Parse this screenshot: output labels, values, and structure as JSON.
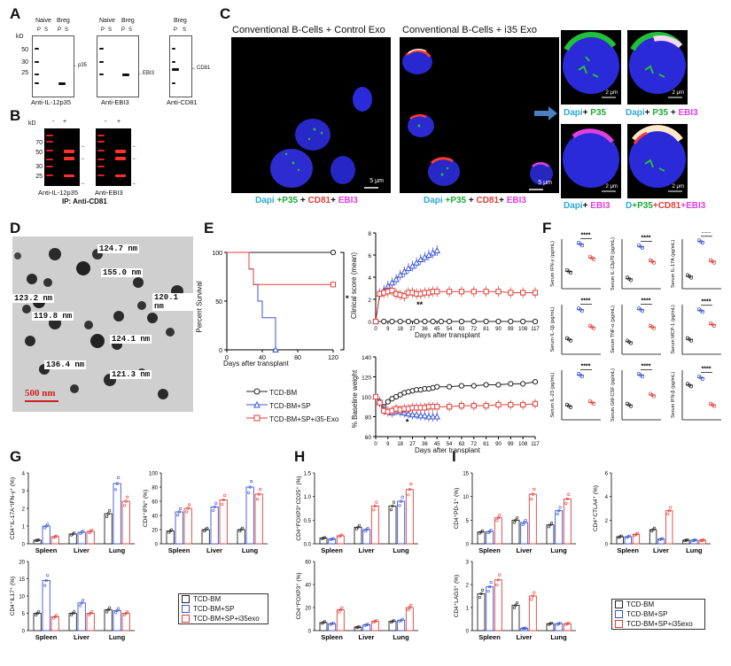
{
  "panels": {
    "A": "A",
    "B": "B",
    "C": "C",
    "D": "D",
    "E": "E",
    "F": "F",
    "G": "G",
    "H": "H",
    "I": "I"
  },
  "A": {
    "blot1": {
      "header1": "Naive",
      "header2": "Breg",
      "lanes": [
        "P",
        "S",
        "P",
        "S"
      ],
      "ladder": [
        "50",
        "30",
        "25"
      ],
      "ladder_unit": "kD",
      "band": "p35",
      "caption": "Anti-IL-12p35"
    },
    "blot2": {
      "header1": "Naive",
      "header2": "Breg",
      "lanes": [
        "P",
        "S",
        "P",
        "S"
      ],
      "band": "EBI3",
      "caption": "Anti-EBI3"
    },
    "blot3": {
      "header": "Breg",
      "lanes": [
        "P",
        "S"
      ],
      "band": "CD81",
      "caption": "Anti-CD81"
    }
  },
  "B": {
    "unit": "kD",
    "lanes": [
      "-",
      "+"
    ],
    "ladder": [
      "70",
      "50",
      "30",
      "25"
    ],
    "caption1": "Anti-IL-12p35",
    "caption2": "Anti-EBI3",
    "ip": "IP: Anti-CD81"
  },
  "C": {
    "title_left": "Conventional B-Cells + Control Exo",
    "title_right": "Conventional B-Cells + i35 Exo",
    "scale": "5 μm",
    "scale_zoom": "2 μm",
    "legend_main": [
      "Dapi",
      "+P35",
      "+",
      "CD81",
      "+",
      "EBI3"
    ],
    "zoom_labels": [
      [
        "Dapi",
        "+",
        "P35"
      ],
      [
        "Dapi",
        "+",
        "P35",
        "+",
        "EBI3"
      ],
      [
        "Dapi",
        "+",
        "EBI3"
      ],
      [
        "D",
        "+P35",
        "+CD81",
        "+EBI3"
      ]
    ]
  },
  "D": {
    "sizes": [
      "124.7 nm",
      "155.0 nm",
      "123.2 nm",
      "120.1 nm",
      "119.8 nm",
      "124.1 nm",
      "136.4 nm",
      "121.3 nm"
    ],
    "scale": "500 nm"
  },
  "E": {
    "survival": {
      "ylabel": "Percent Survival",
      "xlabel": "Days after transplant",
      "yticks": [
        "0",
        "50",
        "100"
      ],
      "xticks": [
        "0",
        "40",
        "80",
        "120"
      ],
      "sig": "**"
    },
    "clinical": {
      "ylabel": "Clinical score (mean)",
      "xlabel": "Days after transplant",
      "yticks": [
        "0",
        "2",
        "4",
        "6",
        "8"
      ],
      "xticks": [
        "0",
        "9",
        "18",
        "27",
        "36",
        "45",
        "54",
        "63",
        "72",
        "81",
        "90",
        "99",
        "108",
        "117"
      ],
      "sig": "**"
    },
    "weight": {
      "ylabel": "% Baseline weight",
      "xlabel": "Days after transplant",
      "yticks": [
        "60",
        "80",
        "100",
        "120",
        "140"
      ],
      "xticks": [
        "0",
        "9",
        "18",
        "27",
        "36",
        "45",
        "54",
        "63",
        "72",
        "81",
        "90",
        "99",
        "108",
        "117"
      ],
      "sig": "*"
    },
    "legend": [
      "TCD-BM",
      "TCD-BM+SP",
      "TCD-BM+SP+i35-Exo"
    ]
  },
  "F": {
    "plots": [
      {
        "ylabel": "Serum IFN-γ (pg/mL)",
        "sig": "****"
      },
      {
        "ylabel": "Serum IL-12p70 (pg/mL)",
        "sig": "****"
      },
      {
        "ylabel": "Serum IL-17A (pg/mL)",
        "sig": "****"
      },
      {
        "ylabel": "Serum IL-1β (pg/mL)",
        "sig": "****"
      },
      {
        "ylabel": "Serum TNF-α (pg/mL)",
        "sig": "****"
      },
      {
        "ylabel": "Serum MCP-1 (pg/mL)",
        "sig": "****"
      },
      {
        "ylabel": "Serum IL-23 (pg/mL)",
        "sig": "****"
      },
      {
        "ylabel": "Serum GM-CSF (pg/mL)",
        "sig": "****"
      },
      {
        "ylabel": "Serum IFN-β (pg/mL)",
        "sig": "****"
      }
    ]
  },
  "G": {
    "plots": [
      {
        "ylabel": "CD4⁺IL-17A⁺IFN-γ⁺ (%)",
        "yticks": [
          "0",
          "1",
          "2",
          "3",
          "4"
        ]
      },
      {
        "ylabel": "CD4⁺IFN⁺ (%)",
        "yticks": [
          "0",
          "20",
          "40",
          "60",
          "80",
          "100"
        ]
      },
      {
        "ylabel": "CD4⁺IL17⁺ (%)",
        "yticks": [
          "0",
          "5",
          "10",
          "15",
          "20"
        ]
      }
    ],
    "tissues": [
      "Spleen",
      "Liver",
      "Lung"
    ]
  },
  "H": {
    "plots": [
      {
        "ylabel": "CD4⁺FOXP3⁺CD25⁺ (%)",
        "yticks": [
          "0.0",
          "0.5",
          "1.0",
          "1.5"
        ]
      },
      {
        "ylabel": "CD4⁺FOXP3⁺ (%)",
        "yticks": [
          "0",
          "20",
          "40",
          "60"
        ]
      }
    ],
    "tissues": [
      "Spleen",
      "Liver",
      "Lung"
    ]
  },
  "I": {
    "plots": [
      {
        "ylabel": "CD4⁺PD-1⁺ (%)",
        "yticks": [
          "0",
          "5",
          "10",
          "15"
        ]
      },
      {
        "ylabel": "CD4⁺CTLA4⁺ (%)",
        "yticks": [
          "0",
          "2",
          "4",
          "6"
        ]
      },
      {
        "ylabel": "CD4⁺LAG3⁺ (%)",
        "yticks": [
          "0",
          "1",
          "2",
          "3"
        ]
      }
    ],
    "tissues": [
      "Spleen",
      "Liver",
      "Lung"
    ]
  },
  "legend_groups": [
    "TCD-BM",
    "TCD-BM+SP",
    "TCD-BM+SP+i35exo"
  ],
  "colors": {
    "black": "#222222",
    "blue": "#3a55d6",
    "red": "#e0403a",
    "green": "#22c03a",
    "magenta": "#e040e0",
    "cyan": "#30a8d8",
    "nucleus": "#2a2ad8"
  },
  "chart_data": [
    {
      "type": "line",
      "title": "",
      "xlabel": "Days after transplant",
      "ylabel": "Percent Survival",
      "xlim": [
        0,
        120
      ],
      "ylim": [
        0,
        100
      ],
      "series": [
        {
          "name": "TCD-BM",
          "x": [
            0,
            120
          ],
          "values": [
            100,
            100
          ]
        },
        {
          "name": "TCD-BM+SP",
          "x": [
            0,
            25,
            30,
            35,
            40,
            50,
            55
          ],
          "values": [
            100,
            83,
            67,
            50,
            33,
            33,
            0
          ]
        },
        {
          "name": "TCD-BM+SP+i35-Exo",
          "x": [
            0,
            25,
            30,
            120
          ],
          "values": [
            100,
            83,
            67,
            67
          ]
        }
      ]
    },
    {
      "type": "line",
      "title": "",
      "xlabel": "Days after transplant",
      "ylabel": "Clinical score (mean)",
      "xlim": [
        0,
        117
      ],
      "ylim": [
        0,
        8
      ],
      "series": [
        {
          "name": "TCD-BM",
          "x": [
            0,
            6,
            12,
            18,
            24,
            30,
            36,
            42,
            48,
            54,
            63,
            72,
            81,
            90,
            99,
            108,
            117
          ],
          "values": [
            0,
            0,
            0,
            0,
            0,
            0,
            0,
            0,
            0,
            0,
            0,
            0,
            0,
            0,
            0,
            0,
            0
          ]
        },
        {
          "name": "TCD-BM+SP",
          "x": [
            0,
            3,
            6,
            9,
            12,
            15,
            18,
            21,
            24,
            27,
            30,
            33,
            36,
            39,
            42,
            45
          ],
          "values": [
            0,
            2.5,
            2.8,
            3.2,
            3.5,
            3.8,
            4.2,
            4.5,
            4.8,
            5,
            5.3,
            5.6,
            5.8,
            6,
            6.2,
            6.4
          ]
        },
        {
          "name": "TCD-BM+SP+i35-Exo",
          "x": [
            0,
            3,
            6,
            9,
            12,
            15,
            18,
            21,
            24,
            27,
            30,
            33,
            36,
            39,
            42,
            45,
            54,
            63,
            72,
            81,
            90,
            99,
            108,
            117
          ],
          "values": [
            0,
            2.5,
            2.6,
            2.7,
            2.8,
            2.5,
            2.4,
            2.3,
            2.6,
            2.6,
            2.5,
            2.5,
            2.6,
            2.6,
            2.7,
            2.7,
            2.7,
            2.7,
            2.7,
            2.7,
            2.7,
            2.6,
            2.6,
            2.6
          ]
        }
      ]
    },
    {
      "type": "line",
      "title": "",
      "xlabel": "Days after transplant",
      "ylabel": "% Baseline weight",
      "xlim": [
        0,
        117
      ],
      "ylim": [
        60,
        140
      ],
      "series": [
        {
          "name": "TCD-BM",
          "x": [
            0,
            3,
            6,
            9,
            12,
            15,
            18,
            21,
            24,
            27,
            30,
            33,
            36,
            39,
            42,
            45,
            54,
            63,
            72,
            81,
            90,
            99,
            108,
            117
          ],
          "values": [
            100,
            95,
            90,
            95,
            98,
            100,
            102,
            104,
            105,
            106,
            107,
            107,
            108,
            108,
            109,
            110,
            110,
            111,
            111,
            112,
            112,
            113,
            113,
            115
          ]
        },
        {
          "name": "TCD-BM+SP",
          "x": [
            0,
            3,
            6,
            9,
            12,
            15,
            18,
            21,
            24,
            27,
            30,
            33,
            36,
            39,
            42,
            45
          ],
          "values": [
            100,
            95,
            88,
            85,
            84,
            86,
            85,
            84,
            83,
            82,
            82,
            81,
            81,
            80,
            80,
            80
          ]
        },
        {
          "name": "TCD-BM+SP+i35-Exo",
          "x": [
            0,
            3,
            6,
            9,
            12,
            15,
            18,
            21,
            24,
            27,
            30,
            33,
            36,
            39,
            42,
            45,
            54,
            63,
            72,
            81,
            90,
            99,
            108,
            117
          ],
          "values": [
            100,
            94,
            86,
            85,
            86,
            88,
            87,
            88,
            88,
            89,
            89,
            89,
            89,
            90,
            90,
            90,
            90,
            91,
            91,
            91,
            92,
            92,
            92,
            93
          ]
        }
      ]
    }
  ]
}
